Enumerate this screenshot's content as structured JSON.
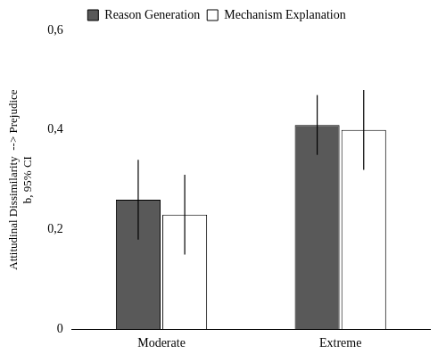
{
  "chart_data": {
    "type": "bar",
    "y_label": [
      "Attitudinal Dissimilarity  --> Prejudice",
      "b, 95% CI"
    ],
    "categories": [
      "Moderate",
      "Extreme"
    ],
    "series": [
      {
        "name": "Reason Generation",
        "color": "#595959",
        "values": [
          0.26,
          0.41
        ],
        "error_low": [
          0.18,
          0.35
        ],
        "error_high": [
          0.34,
          0.47
        ]
      },
      {
        "name": "Mechanism Explanation",
        "color": "#ffffff",
        "values": [
          0.23,
          0.4
        ],
        "error_low": [
          0.15,
          0.32
        ],
        "error_high": [
          0.31,
          0.48
        ]
      }
    ],
    "ylim": [
      0,
      0.6
    ],
    "yticks": [
      0,
      {
        "value": 0.2,
        "label": "0,2"
      },
      {
        "value": 0.4,
        "label": "0,4"
      },
      {
        "value": 0.6,
        "label": "0,6"
      }
    ],
    "grid": false,
    "legend": "top"
  }
}
